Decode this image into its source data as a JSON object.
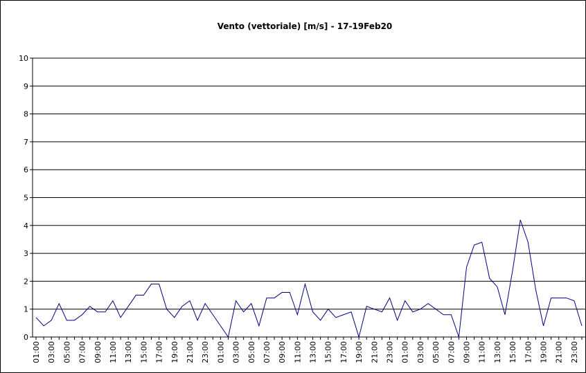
{
  "chart_data": {
    "type": "line",
    "title": "Vento (vettoriale) [m/s] - 17-19Feb20",
    "categories": [
      "01:00",
      null,
      "03:00",
      null,
      "05:00",
      null,
      "07:00",
      null,
      "09:00",
      null,
      "11:00",
      null,
      "13:00",
      null,
      "15:00",
      null,
      "17:00",
      null,
      "19:00",
      null,
      "21:00",
      null,
      "23:00",
      null,
      "01:00",
      null,
      "03:00",
      null,
      "05:00",
      null,
      "07:00",
      null,
      "09:00",
      null,
      "11:00",
      null,
      "13:00",
      null,
      "15:00",
      null,
      "17:00",
      null,
      "19:00",
      null,
      "21:00",
      null,
      "23:00",
      null,
      "01:00",
      null,
      "03:00",
      null,
      "05:00",
      null,
      "07:00",
      null,
      "09:00",
      null,
      "11:00",
      null,
      "13:00",
      null,
      "15:00",
      null,
      "17:00",
      null,
      "19:00",
      null,
      "21:00",
      null,
      "23:00",
      null
    ],
    "series": [
      {
        "name": "Vento",
        "color": "#000080",
        "values": [
          0.7,
          0.4,
          0.6,
          1.2,
          0.6,
          0.6,
          0.8,
          1.1,
          0.9,
          0.9,
          1.3,
          0.7,
          1.1,
          1.5,
          1.5,
          1.9,
          1.9,
          1.0,
          0.7,
          1.1,
          1.3,
          0.6,
          1.2,
          0.8,
          0.4,
          0.0,
          1.3,
          0.9,
          1.2,
          0.4,
          1.4,
          1.4,
          1.6,
          1.6,
          0.8,
          1.9,
          0.9,
          0.6,
          1.0,
          0.7,
          0.8,
          0.9,
          0.0,
          1.1,
          1.0,
          0.9,
          1.4,
          0.6,
          1.3,
          0.9,
          1.0,
          1.2,
          1.0,
          0.8,
          0.8,
          0.0,
          2.5,
          3.3,
          3.4,
          2.1,
          1.8,
          0.8,
          2.4,
          4.2,
          3.4,
          1.7,
          0.4,
          1.4,
          1.4,
          1.4,
          1.3,
          0.4
        ]
      }
    ],
    "ylim": [
      0,
      10
    ],
    "yticks": [
      0,
      1,
      2,
      3,
      4,
      5,
      6,
      7,
      8,
      9,
      10
    ],
    "grid": true
  }
}
